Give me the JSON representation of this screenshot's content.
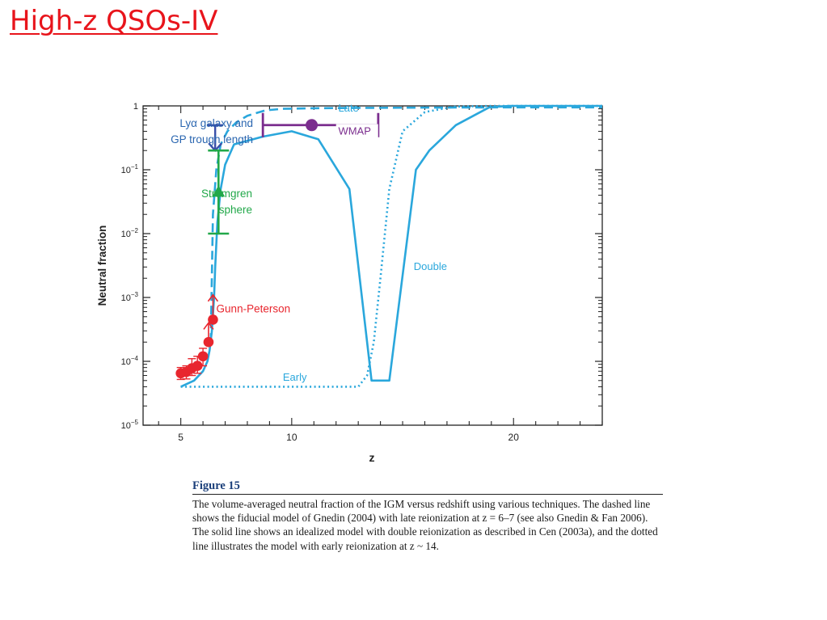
{
  "slide": {
    "title": "High-z QSOs-IV"
  },
  "caption": {
    "figure_label": "Figure 15",
    "text": "The volume-averaged neutral fraction of the IGM versus redshift using various techniques. The dashed line shows the fiducial model of Gnedin (2004) with late reionization at z = 6–7 (see also Gnedin & Fan 2006). The solid line shows an idealized model with double reionization as described in Cen (2003a), and the dotted line illustrates the model with early reionization at z ~ 14."
  },
  "colors": {
    "title": "#e8141b",
    "model_lines": "#2aa7dc",
    "lya_label": "#2a66b0",
    "lya_bar": "#3b4fa8",
    "stromgren": "#22a84a",
    "wmap": "#7b2d8e",
    "gunn_peterson": "#e8262e"
  },
  "chart_data": {
    "type": "line",
    "xlabel": "z",
    "ylabel": "Neutral fraction",
    "xscale": "linear",
    "yscale": "log",
    "xlim": [
      3.3,
      24
    ],
    "ylim": [
      1e-05,
      1
    ],
    "x_ticks": [
      5,
      10,
      20
    ],
    "x_tick_labels": [
      "5",
      "10",
      "20"
    ],
    "y_ticks": [
      1,
      0.1,
      0.01,
      0.001,
      0.0001,
      1e-05
    ],
    "y_tick_labels": [
      {
        "base": "1",
        "exp": ""
      },
      {
        "base": "10",
        "exp": "−1"
      },
      {
        "base": "10",
        "exp": "−2"
      },
      {
        "base": "10",
        "exp": "−3"
      },
      {
        "base": "10",
        "exp": "−4"
      },
      {
        "base": "10",
        "exp": "−5"
      }
    ],
    "grid": false,
    "series": [
      {
        "name": "Late",
        "style": "dashed",
        "x": [
          6.35,
          6.45,
          6.6,
          6.8,
          7.1,
          7.5,
          8.0,
          8.8,
          9.6,
          11,
          13,
          16,
          20,
          24
        ],
        "y": [
          0.0002,
          0.02,
          0.1,
          0.25,
          0.4,
          0.55,
          0.7,
          0.85,
          0.9,
          0.92,
          0.93,
          0.94,
          0.95,
          0.95
        ]
      },
      {
        "name": "Double",
        "style": "solid",
        "x": [
          5.0,
          5.6,
          6.0,
          6.2,
          6.3,
          6.4,
          6.5,
          6.55,
          6.65,
          6.8,
          7.0,
          7.4,
          8.7,
          10.0,
          11.2,
          12.6,
          13.6,
          14.4,
          15.6,
          16.2,
          17.4,
          18.9,
          19.8,
          21,
          24
        ],
        "y": [
          4e-05,
          5e-05,
          7e-05,
          0.0001,
          0.00015,
          0.0003,
          0.001,
          0.003,
          0.015,
          0.05,
          0.12,
          0.25,
          0.33,
          0.4,
          0.3,
          0.05,
          5e-05,
          5e-05,
          0.1,
          0.2,
          0.5,
          0.95,
          1,
          1,
          1
        ]
      },
      {
        "name": "Early",
        "style": "dotted",
        "x": [
          5.0,
          7.0,
          10.0,
          12.0,
          13.0,
          13.4,
          13.7,
          14.0,
          14.4,
          15.0,
          16.0,
          17.3,
          19.0,
          24
        ],
        "y": [
          4e-05,
          4e-05,
          4e-05,
          4e-05,
          4e-05,
          6e-05,
          0.0002,
          0.002,
          0.05,
          0.4,
          0.8,
          0.97,
          1,
          1
        ]
      }
    ],
    "measurements": [
      {
        "name": "Gunn-Peterson",
        "label": "Gunn-Peterson",
        "points": [
          {
            "x": 5.0,
            "y": 6.5e-05,
            "lo": 5.2e-05,
            "hi": 8e-05,
            "lower_limit": false
          },
          {
            "x": 5.25,
            "y": 6.8e-05,
            "lo": 5.3e-05,
            "hi": 8.5e-05,
            "lower_limit": false
          },
          {
            "x": 5.5,
            "y": 7.8e-05,
            "lo": 6e-05,
            "hi": 0.00011,
            "lower_limit": false
          },
          {
            "x": 5.75,
            "y": 8.5e-05,
            "lo": 6.5e-05,
            "hi": 0.00012,
            "lower_limit": false
          },
          {
            "x": 6.0,
            "y": 0.00012,
            "lo": 8.5e-05,
            "hi": 0.00016,
            "lower_limit": false
          },
          {
            "x": 6.25,
            "y": 0.0002,
            "lo": 0.0002,
            "hi": 0.0004,
            "lower_limit": true
          },
          {
            "x": 6.45,
            "y": 0.00045,
            "lo": 0.00045,
            "hi": 0.0011,
            "lower_limit": true
          }
        ]
      },
      {
        "name": "Lyα galaxy and GP trough length",
        "label_line1": "Lyα galaxy and",
        "label_line2": "GP trough length",
        "x": 6.55,
        "y": 0.2,
        "hi": 0.5,
        "type": "lower_limit"
      },
      {
        "name": "Stromgren sphere",
        "label_line1": "Stromgren",
        "label_line2": "sphere",
        "x": 6.7,
        "y": 0.045,
        "lo": 0.01,
        "hi": 0.2
      },
      {
        "name": "WMAP",
        "label": "WMAP",
        "x": 10.9,
        "y": 0.5,
        "xlo": 8.7,
        "xhi": 13.9
      }
    ],
    "line_labels": [
      {
        "text": "Late",
        "series": "Late"
      },
      {
        "text": "Double",
        "series": "Double"
      },
      {
        "text": "Early",
        "series": "Early"
      }
    ]
  }
}
